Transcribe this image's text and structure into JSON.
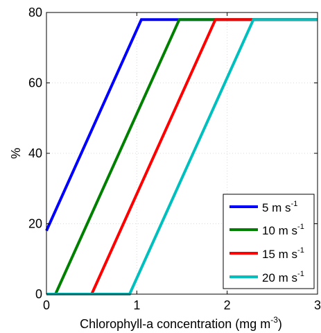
{
  "chart_data": {
    "type": "line",
    "xlabel": "Chlorophyll-a concentration (mg m",
    "xlabel_sup": "-3",
    "xlabel_close": ")",
    "ylabel": "%",
    "xlim": [
      0,
      3
    ],
    "ylim": [
      0,
      80
    ],
    "xticks": [
      0,
      1,
      2,
      3
    ],
    "yticks": [
      0,
      20,
      40,
      60,
      80
    ],
    "grid": true,
    "legend_position": "bottom-right",
    "series": [
      {
        "name": "5 m s",
        "name_sup": "-1",
        "color": "#0000ff",
        "x": [
          0,
          1.05,
          3
        ],
        "y": [
          18,
          78,
          78
        ]
      },
      {
        "name": "10 m s",
        "name_sup": "-1",
        "color": "#008000",
        "x": [
          0,
          0.1,
          1.47,
          3
        ],
        "y": [
          0,
          0,
          78,
          78
        ]
      },
      {
        "name": "15 m s",
        "name_sup": "-1",
        "color": "#ff0000",
        "x": [
          0,
          0.5,
          1.87,
          3
        ],
        "y": [
          0,
          0,
          78,
          78
        ]
      },
      {
        "name": "20 m s",
        "name_sup": "-1",
        "color": "#00bfbf",
        "x": [
          0,
          0.92,
          2.29,
          3
        ],
        "y": [
          0,
          0,
          78,
          78
        ]
      }
    ]
  }
}
